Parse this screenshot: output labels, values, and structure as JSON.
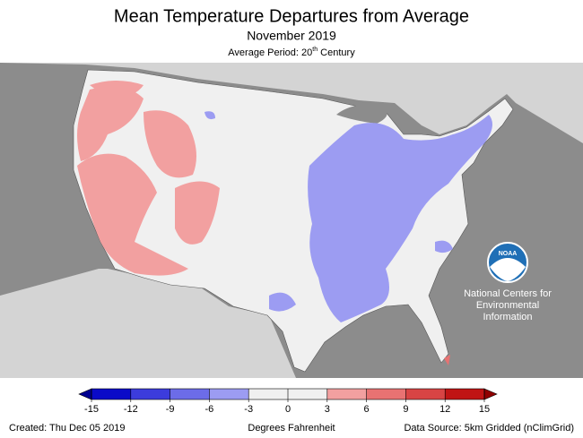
{
  "header": {
    "title": "Mean Temperature Departures from Average",
    "subtitle": "November 2019",
    "period": "Average Period: 20",
    "period_sup": "th",
    "period_suffix": " Century"
  },
  "logo": {
    "name": "NOAA",
    "lines": [
      "National Centers for",
      "Environmental",
      "Information"
    ]
  },
  "legend": {
    "ticks": [
      -15,
      -12,
      -9,
      -6,
      -3,
      0,
      3,
      6,
      9,
      12,
      15
    ],
    "colors": [
      "#0a0ac8",
      "#3c3cdc",
      "#6c6ce8",
      "#9c9cf2",
      "#f0f0f0",
      "#f0f0f0",
      "#f2a0a0",
      "#e87272",
      "#d84444",
      "#c01414"
    ],
    "low_color": "#000090",
    "high_color": "#900000",
    "label": "Degrees Fahrenheit"
  },
  "footer": {
    "created": "Created: Thu Dec 05 2019",
    "source": "Data Source: 5km Gridded (nClimGrid)"
  }
}
